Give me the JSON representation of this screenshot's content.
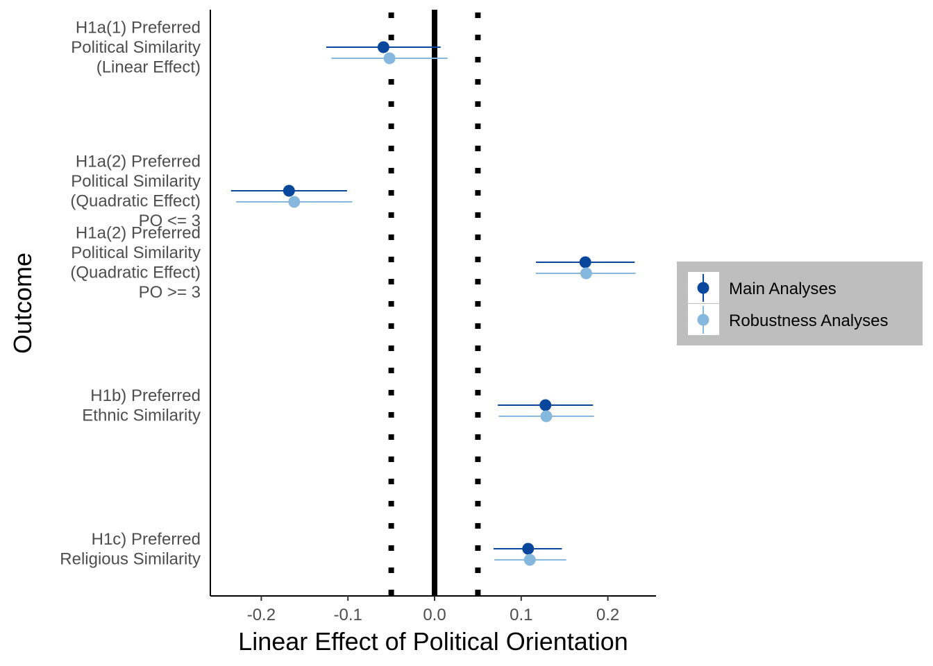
{
  "chart_data": {
    "type": "scatter",
    "subtype": "forest-plot",
    "xlabel": "Linear Effect of Political Orientation",
    "ylabel": "Outcome",
    "xlim": [
      -0.26,
      0.255
    ],
    "xticks": [
      -0.2,
      -0.1,
      0.0,
      0.1,
      0.2
    ],
    "xtick_labels": [
      "-0.2",
      "-0.1",
      "0.0",
      "0.1",
      "0.2"
    ],
    "grid": false,
    "legend_position": "right",
    "reference_lines": [
      {
        "x": 0.0,
        "style": "solid"
      },
      {
        "x": -0.05,
        "style": "dotted"
      },
      {
        "x": 0.05,
        "style": "dotted"
      }
    ],
    "categories": [
      {
        "key": "h1a1",
        "lines": [
          "H1a(1) Preferred",
          "Political Similarity",
          "(Linear Effect)"
        ]
      },
      {
        "key": "h1a2_low",
        "lines": [
          "H1a(2) Preferred",
          "Political Similarity",
          "(Quadratic Effect)",
          "PO <= 3"
        ]
      },
      {
        "key": "h1a2_high",
        "lines": [
          "H1a(2) Preferred",
          "Political Similarity",
          "(Quadratic Effect)",
          "PO >= 3"
        ]
      },
      {
        "key": "h1b",
        "lines": [
          "H1b) Preferred",
          "Ethnic Similarity"
        ]
      },
      {
        "key": "h1c",
        "lines": [
          "H1c) Preferred",
          "Religious Similarity"
        ]
      }
    ],
    "series": [
      {
        "name": "Main Analyses",
        "color": "#08479c",
        "points": [
          {
            "category": "h1a1",
            "estimate": -0.059,
            "lower": -0.125,
            "upper": 0.007
          },
          {
            "category": "h1a2_low",
            "estimate": -0.168,
            "lower": -0.235,
            "upper": -0.101
          },
          {
            "category": "h1a2_high",
            "estimate": 0.174,
            "lower": 0.117,
            "upper": 0.231
          },
          {
            "category": "h1b",
            "estimate": 0.128,
            "lower": 0.073,
            "upper": 0.183
          },
          {
            "category": "h1c",
            "estimate": 0.108,
            "lower": 0.068,
            "upper": 0.147
          }
        ]
      },
      {
        "name": "Robustness Analyses",
        "color": "#85b8dc",
        "points": [
          {
            "category": "h1a1",
            "estimate": -0.052,
            "lower": -0.119,
            "upper": 0.015
          },
          {
            "category": "h1a2_low",
            "estimate": -0.162,
            "lower": -0.229,
            "upper": -0.095
          },
          {
            "category": "h1a2_high",
            "estimate": 0.175,
            "lower": 0.117,
            "upper": 0.232
          },
          {
            "category": "h1b",
            "estimate": 0.129,
            "lower": 0.074,
            "upper": 0.184
          },
          {
            "category": "h1c",
            "estimate": 0.11,
            "lower": 0.069,
            "upper": 0.152
          }
        ]
      }
    ]
  }
}
